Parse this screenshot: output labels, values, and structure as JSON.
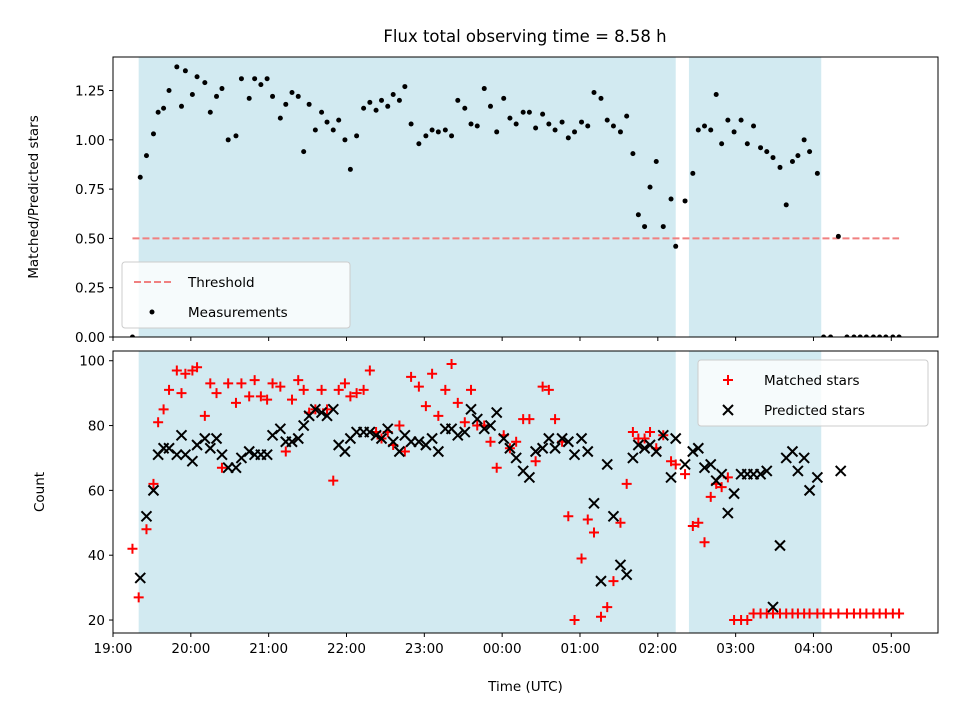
{
  "figure_title": "Flux total observing time = 8.58 h",
  "colors": {
    "shade": "#add8e6",
    "threshold": "#f08080",
    "measurement": "#000000",
    "matched": "#ff0000",
    "predicted": "#000000"
  },
  "chart_data": [
    {
      "type": "scatter",
      "ylabel": "Matched/Predicted stars",
      "xlim": [
        19.0,
        29.6
      ],
      "ylim": [
        0,
        1.42
      ],
      "xticks": [
        19.0,
        20.0,
        21.0,
        22.0,
        23.0,
        24.0,
        25.0,
        26.0,
        27.0,
        28.0,
        29.0
      ],
      "xtick_labels": [
        "19:00",
        "20:00",
        "21:00",
        "22:00",
        "23:00",
        "00:00",
        "01:00",
        "02:00",
        "03:00",
        "04:00",
        "05:00"
      ],
      "yticks": [
        0.0,
        0.25,
        0.5,
        0.75,
        1.0,
        1.25
      ],
      "ytick_labels": [
        "0.00",
        "0.25",
        "0.50",
        "0.75",
        "1.00",
        "1.25"
      ],
      "shaded_intervals": [
        [
          19.33,
          26.23
        ],
        [
          26.4,
          28.1
        ]
      ],
      "legend_position": "lower-left",
      "threshold": {
        "name": "Threshold",
        "y": 0.5,
        "x_range": [
          19.25,
          29.1
        ]
      },
      "series": [
        {
          "name": "Measurements",
          "x": [
            19.25,
            19.35,
            19.43,
            19.52,
            19.58,
            19.65,
            19.72,
            19.82,
            19.88,
            19.93,
            20.02,
            20.08,
            20.18,
            20.25,
            20.33,
            20.4,
            20.48,
            20.58,
            20.65,
            20.75,
            20.82,
            20.9,
            20.98,
            21.05,
            21.15,
            21.22,
            21.3,
            21.38,
            21.45,
            21.52,
            21.6,
            21.68,
            21.75,
            21.83,
            21.9,
            21.98,
            22.05,
            22.13,
            22.22,
            22.3,
            22.38,
            22.45,
            22.53,
            22.6,
            22.68,
            22.75,
            22.83,
            22.93,
            23.02,
            23.1,
            23.18,
            23.27,
            23.35,
            23.43,
            23.52,
            23.6,
            23.68,
            23.77,
            23.85,
            23.93,
            24.02,
            24.1,
            24.18,
            24.27,
            24.35,
            24.43,
            24.52,
            24.6,
            24.68,
            24.77,
            24.85,
            24.93,
            25.02,
            25.1,
            25.18,
            25.27,
            25.35,
            25.43,
            25.52,
            25.6,
            25.68,
            25.75,
            25.83,
            25.9,
            25.98,
            26.07,
            26.17,
            26.23,
            26.35,
            26.45,
            26.52,
            26.6,
            26.68,
            26.75,
            26.82,
            26.9,
            26.98,
            27.07,
            27.15,
            27.23,
            27.32,
            27.4,
            27.48,
            27.57,
            27.65,
            27.73,
            27.8,
            27.88,
            27.95,
            28.05,
            28.13,
            28.22,
            28.32,
            28.43,
            28.52,
            28.6,
            28.68,
            28.77,
            28.85,
            28.93,
            29.02,
            29.1
          ],
          "y": [
            0.0,
            0.81,
            0.92,
            1.03,
            1.14,
            1.16,
            1.25,
            1.37,
            1.17,
            1.35,
            1.23,
            1.32,
            1.29,
            1.14,
            1.22,
            1.26,
            1.0,
            1.02,
            1.31,
            1.21,
            1.31,
            1.28,
            1.31,
            1.22,
            1.11,
            1.18,
            1.24,
            1.22,
            0.94,
            1.18,
            1.05,
            1.14,
            1.09,
            1.05,
            1.1,
            1.0,
            0.85,
            1.02,
            1.16,
            1.19,
            1.15,
            1.2,
            1.17,
            1.23,
            1.2,
            1.27,
            1.08,
            0.98,
            1.02,
            1.05,
            1.04,
            1.05,
            1.02,
            1.2,
            1.16,
            1.08,
            1.07,
            1.26,
            1.17,
            1.04,
            1.21,
            1.11,
            1.08,
            1.14,
            1.14,
            1.06,
            1.13,
            1.08,
            1.05,
            1.09,
            1.01,
            1.04,
            1.09,
            1.07,
            1.24,
            1.21,
            1.1,
            1.07,
            1.04,
            1.12,
            0.93,
            0.62,
            0.56,
            0.76,
            0.89,
            0.56,
            0.7,
            0.46,
            0.69,
            0.83,
            1.05,
            1.07,
            1.05,
            1.23,
            0.98,
            1.1,
            1.04,
            1.1,
            0.98,
            1.07,
            0.96,
            0.94,
            0.91,
            0.86,
            0.67,
            0.89,
            0.92,
            1.0,
            0.94,
            0.83,
            0.0,
            0.0,
            0.51,
            0.0,
            0.0,
            0.0,
            0.0,
            0.0,
            0.0,
            0.0,
            0.0,
            0.0
          ]
        }
      ]
    },
    {
      "type": "scatter",
      "xlabel": "Time (UTC)",
      "ylabel": "Count",
      "xlim": [
        19.0,
        29.6
      ],
      "ylim": [
        16,
        103
      ],
      "xticks": [
        19.0,
        20.0,
        21.0,
        22.0,
        23.0,
        24.0,
        25.0,
        26.0,
        27.0,
        28.0,
        29.0
      ],
      "xtick_labels": [
        "19:00",
        "20:00",
        "21:00",
        "22:00",
        "23:00",
        "00:00",
        "01:00",
        "02:00",
        "03:00",
        "04:00",
        "05:00"
      ],
      "yticks": [
        20,
        40,
        60,
        80,
        100
      ],
      "ytick_labels": [
        "20",
        "40",
        "60",
        "80",
        "100"
      ],
      "shaded_intervals": [
        [
          19.33,
          26.23
        ],
        [
          26.4,
          28.1
        ]
      ],
      "legend_position": "upper-right",
      "series": [
        {
          "name": "Matched stars",
          "x": [
            19.25,
            19.33,
            19.43,
            19.52,
            19.58,
            19.65,
            19.72,
            19.82,
            19.88,
            19.93,
            20.02,
            20.08,
            20.18,
            20.25,
            20.33,
            20.4,
            20.48,
            20.58,
            20.65,
            20.75,
            20.82,
            20.9,
            20.98,
            21.05,
            21.15,
            21.22,
            21.3,
            21.38,
            21.45,
            21.52,
            21.6,
            21.68,
            21.75,
            21.83,
            21.9,
            21.98,
            22.05,
            22.13,
            22.22,
            22.3,
            22.38,
            22.45,
            22.53,
            22.6,
            22.68,
            22.75,
            22.83,
            22.93,
            23.02,
            23.1,
            23.18,
            23.27,
            23.35,
            23.43,
            23.52,
            23.6,
            23.68,
            23.77,
            23.85,
            23.93,
            24.02,
            24.1,
            24.18,
            24.27,
            24.35,
            24.43,
            24.52,
            24.6,
            24.68,
            24.77,
            24.85,
            24.93,
            25.02,
            25.1,
            25.18,
            25.27,
            25.35,
            25.43,
            25.52,
            25.6,
            25.68,
            25.75,
            25.83,
            25.9,
            25.98,
            26.07,
            26.17,
            26.23,
            26.35,
            26.45,
            26.52,
            26.6,
            26.68,
            26.75,
            26.82,
            26.9,
            26.98,
            27.07,
            27.15,
            27.23,
            27.32,
            27.4,
            27.48,
            27.57,
            27.65,
            27.73,
            27.8,
            27.88,
            27.95,
            28.05,
            28.13,
            28.22,
            28.32,
            28.43,
            28.52,
            28.6,
            28.68,
            28.77,
            28.85,
            28.93,
            29.02,
            29.1
          ],
          "y": [
            42,
            27,
            48,
            62,
            81,
            85,
            91,
            97,
            90,
            96,
            97,
            98,
            83,
            93,
            90,
            67,
            93,
            87,
            93,
            89,
            94,
            89,
            88,
            93,
            92,
            72,
            88,
            94,
            91,
            84,
            85,
            91,
            85,
            63,
            91,
            93,
            89,
            90,
            91,
            97,
            78,
            76,
            78,
            74,
            80,
            72,
            95,
            92,
            86,
            96,
            83,
            91,
            99,
            87,
            81,
            91,
            80,
            80,
            75,
            67,
            77,
            73,
            75,
            82,
            82,
            69,
            92,
            91,
            82,
            75,
            52,
            20,
            39,
            51,
            47,
            21,
            24,
            32,
            50,
            62,
            78,
            76,
            76,
            78,
            73,
            77,
            69,
            68,
            65,
            49,
            50,
            44,
            58,
            62,
            61,
            64,
            20,
            20,
            20,
            22,
            22,
            22,
            22,
            22,
            22,
            22,
            22,
            22,
            22,
            22,
            22,
            22,
            22,
            22,
            22,
            22,
            22,
            22,
            22,
            22,
            22,
            22
          ]
        },
        {
          "name": "Predicted stars",
          "x": [
            19.35,
            19.43,
            19.52,
            19.58,
            19.65,
            19.72,
            19.82,
            19.88,
            19.93,
            20.02,
            20.08,
            20.18,
            20.25,
            20.33,
            20.4,
            20.48,
            20.58,
            20.65,
            20.75,
            20.82,
            20.9,
            20.98,
            21.05,
            21.15,
            21.22,
            21.3,
            21.38,
            21.45,
            21.52,
            21.6,
            21.68,
            21.75,
            21.83,
            21.9,
            21.98,
            22.05,
            22.13,
            22.22,
            22.3,
            22.38,
            22.45,
            22.53,
            22.6,
            22.68,
            22.75,
            22.83,
            22.93,
            23.02,
            23.1,
            23.18,
            23.27,
            23.35,
            23.43,
            23.52,
            23.6,
            23.68,
            23.77,
            23.85,
            23.93,
            24.02,
            24.1,
            24.18,
            24.27,
            24.35,
            24.43,
            24.52,
            24.6,
            24.68,
            24.77,
            24.85,
            24.93,
            25.02,
            25.1,
            25.18,
            25.27,
            25.35,
            25.43,
            25.52,
            25.6,
            25.68,
            25.75,
            25.83,
            25.9,
            25.98,
            26.07,
            26.17,
            26.23,
            26.35,
            26.45,
            26.52,
            26.6,
            26.68,
            26.75,
            26.82,
            26.9,
            26.98,
            27.07,
            27.15,
            27.23,
            27.32,
            27.4,
            27.48,
            27.57,
            27.65,
            27.73,
            27.8,
            27.88,
            27.95,
            28.05,
            28.35
          ],
          "y": [
            33,
            52,
            60,
            71,
            73,
            73,
            71,
            77,
            71,
            69,
            74,
            76,
            73,
            76,
            71,
            67,
            67,
            70,
            72,
            71,
            71,
            71,
            77,
            79,
            75,
            75,
            76,
            80,
            83,
            85,
            84,
            83,
            85,
            74,
            72,
            76,
            78,
            78,
            78,
            77,
            76,
            79,
            75,
            72,
            77,
            75,
            75,
            74,
            76,
            72,
            79,
            79,
            77,
            78,
            85,
            82,
            79,
            80,
            84,
            76,
            73,
            70,
            66,
            64,
            72,
            73,
            76,
            73,
            76,
            75,
            71,
            76,
            72,
            56,
            32,
            68,
            52,
            37,
            34,
            70,
            74,
            73,
            74,
            72,
            77,
            64,
            76,
            68,
            72,
            73,
            67,
            68,
            63,
            65,
            53,
            59,
            65,
            65,
            65,
            65,
            66,
            24,
            43,
            70,
            72,
            66,
            70,
            60,
            64,
            66
          ]
        }
      ]
    }
  ]
}
